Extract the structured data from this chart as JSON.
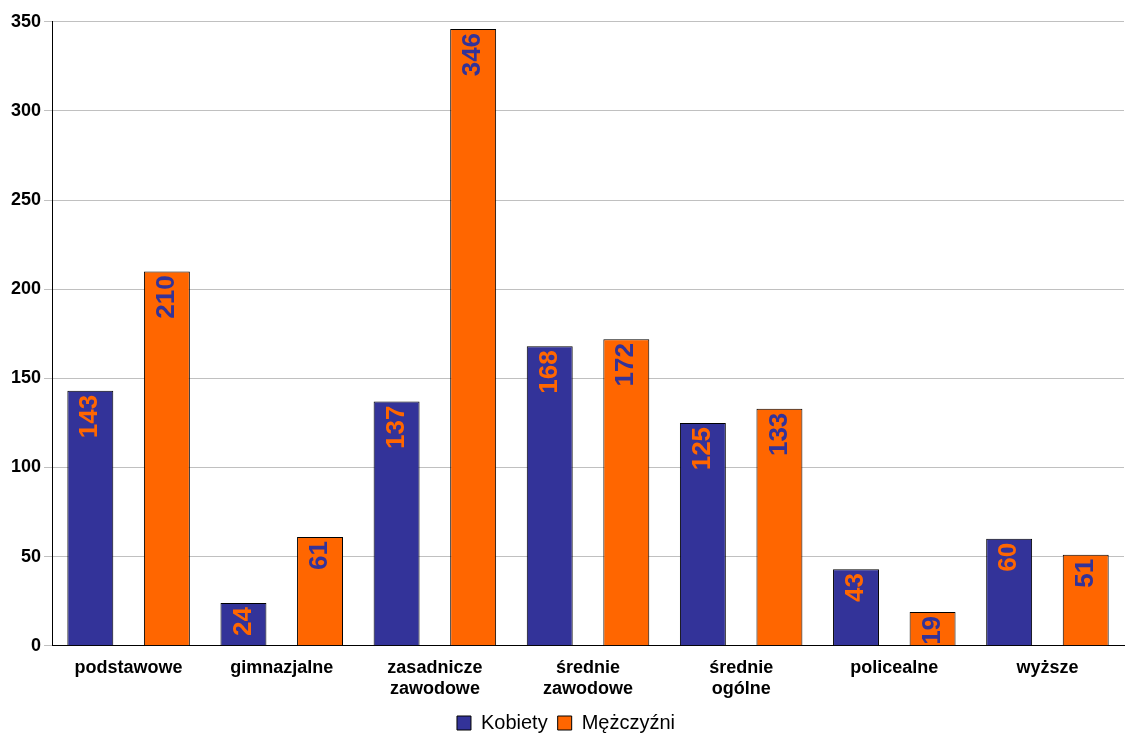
{
  "chart_data": {
    "type": "bar",
    "categories": [
      "podstawowe",
      "gimnazjalne",
      "zasadnicze zawodowe",
      "średnie zawodowe",
      "średnie ogólne",
      "policealne",
      "wyższe"
    ],
    "series": [
      {
        "name": "Kobiety",
        "color": "#333399",
        "values": [
          143,
          24,
          137,
          168,
          125,
          43,
          60
        ]
      },
      {
        "name": "Mężczyźni",
        "color": "#ff6600",
        "values": [
          210,
          61,
          346,
          172,
          133,
          19,
          51
        ]
      }
    ],
    "ylim": [
      0,
      350
    ],
    "yticks": [
      0,
      50,
      100,
      150,
      200,
      250,
      300,
      350
    ],
    "grid": "y",
    "legend": "bottom",
    "data_labels": true
  }
}
